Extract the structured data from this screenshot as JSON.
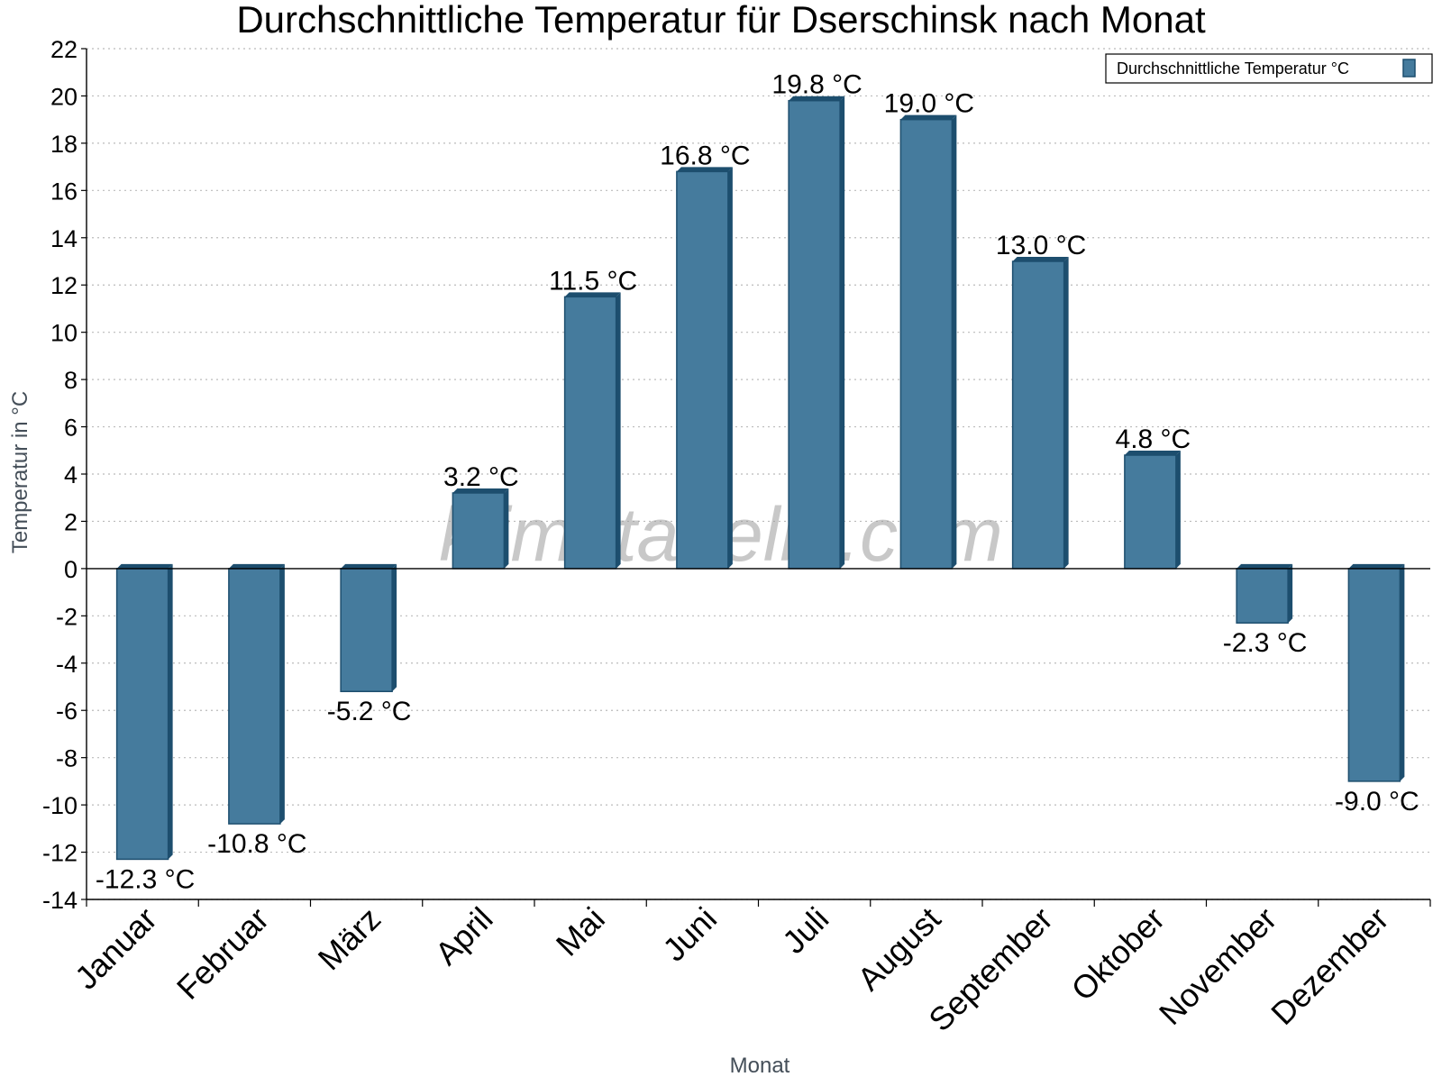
{
  "chart_data": {
    "type": "bar",
    "title": "Durchschnittliche Temperatur für Dserschinsk nach Monat",
    "xlabel": "Monat",
    "ylabel": "Temperatur in °C",
    "categories": [
      "Januar",
      "Februar",
      "März",
      "April",
      "Mai",
      "Juni",
      "Juli",
      "August",
      "September",
      "Oktober",
      "November",
      "Dezember"
    ],
    "series": [
      {
        "name": "Durchschnittliche Temperatur °C",
        "values": [
          -12.3,
          -10.8,
          -5.2,
          3.2,
          11.5,
          16.8,
          19.8,
          19.0,
          13.0,
          4.8,
          -2.3,
          -9.0
        ],
        "labels": [
          "-12.3 °C",
          "-10.8 °C",
          "-5.2 °C",
          "3.2 °C",
          "11.5 °C",
          "16.8 °C",
          "19.8 °C",
          "19.0 °C",
          "13.0 °C",
          "4.8 °C",
          "-2.3 °C",
          "-9.0 °C"
        ]
      }
    ],
    "ylim": [
      -14,
      22
    ],
    "yticks": [
      "22",
      "20",
      "18",
      "16",
      "14",
      "12",
      "10",
      "8",
      "6",
      "4",
      "2",
      "0",
      "-2",
      "-4",
      "-6",
      "-8",
      "-10",
      "-12",
      "-14"
    ],
    "grid": true,
    "legend_position": "top-right"
  },
  "watermark": "klimatabelle.com",
  "colors": {
    "bar": "#457b9d",
    "bar_side": "#1d4e6e",
    "grid": "#bbbbbb"
  }
}
